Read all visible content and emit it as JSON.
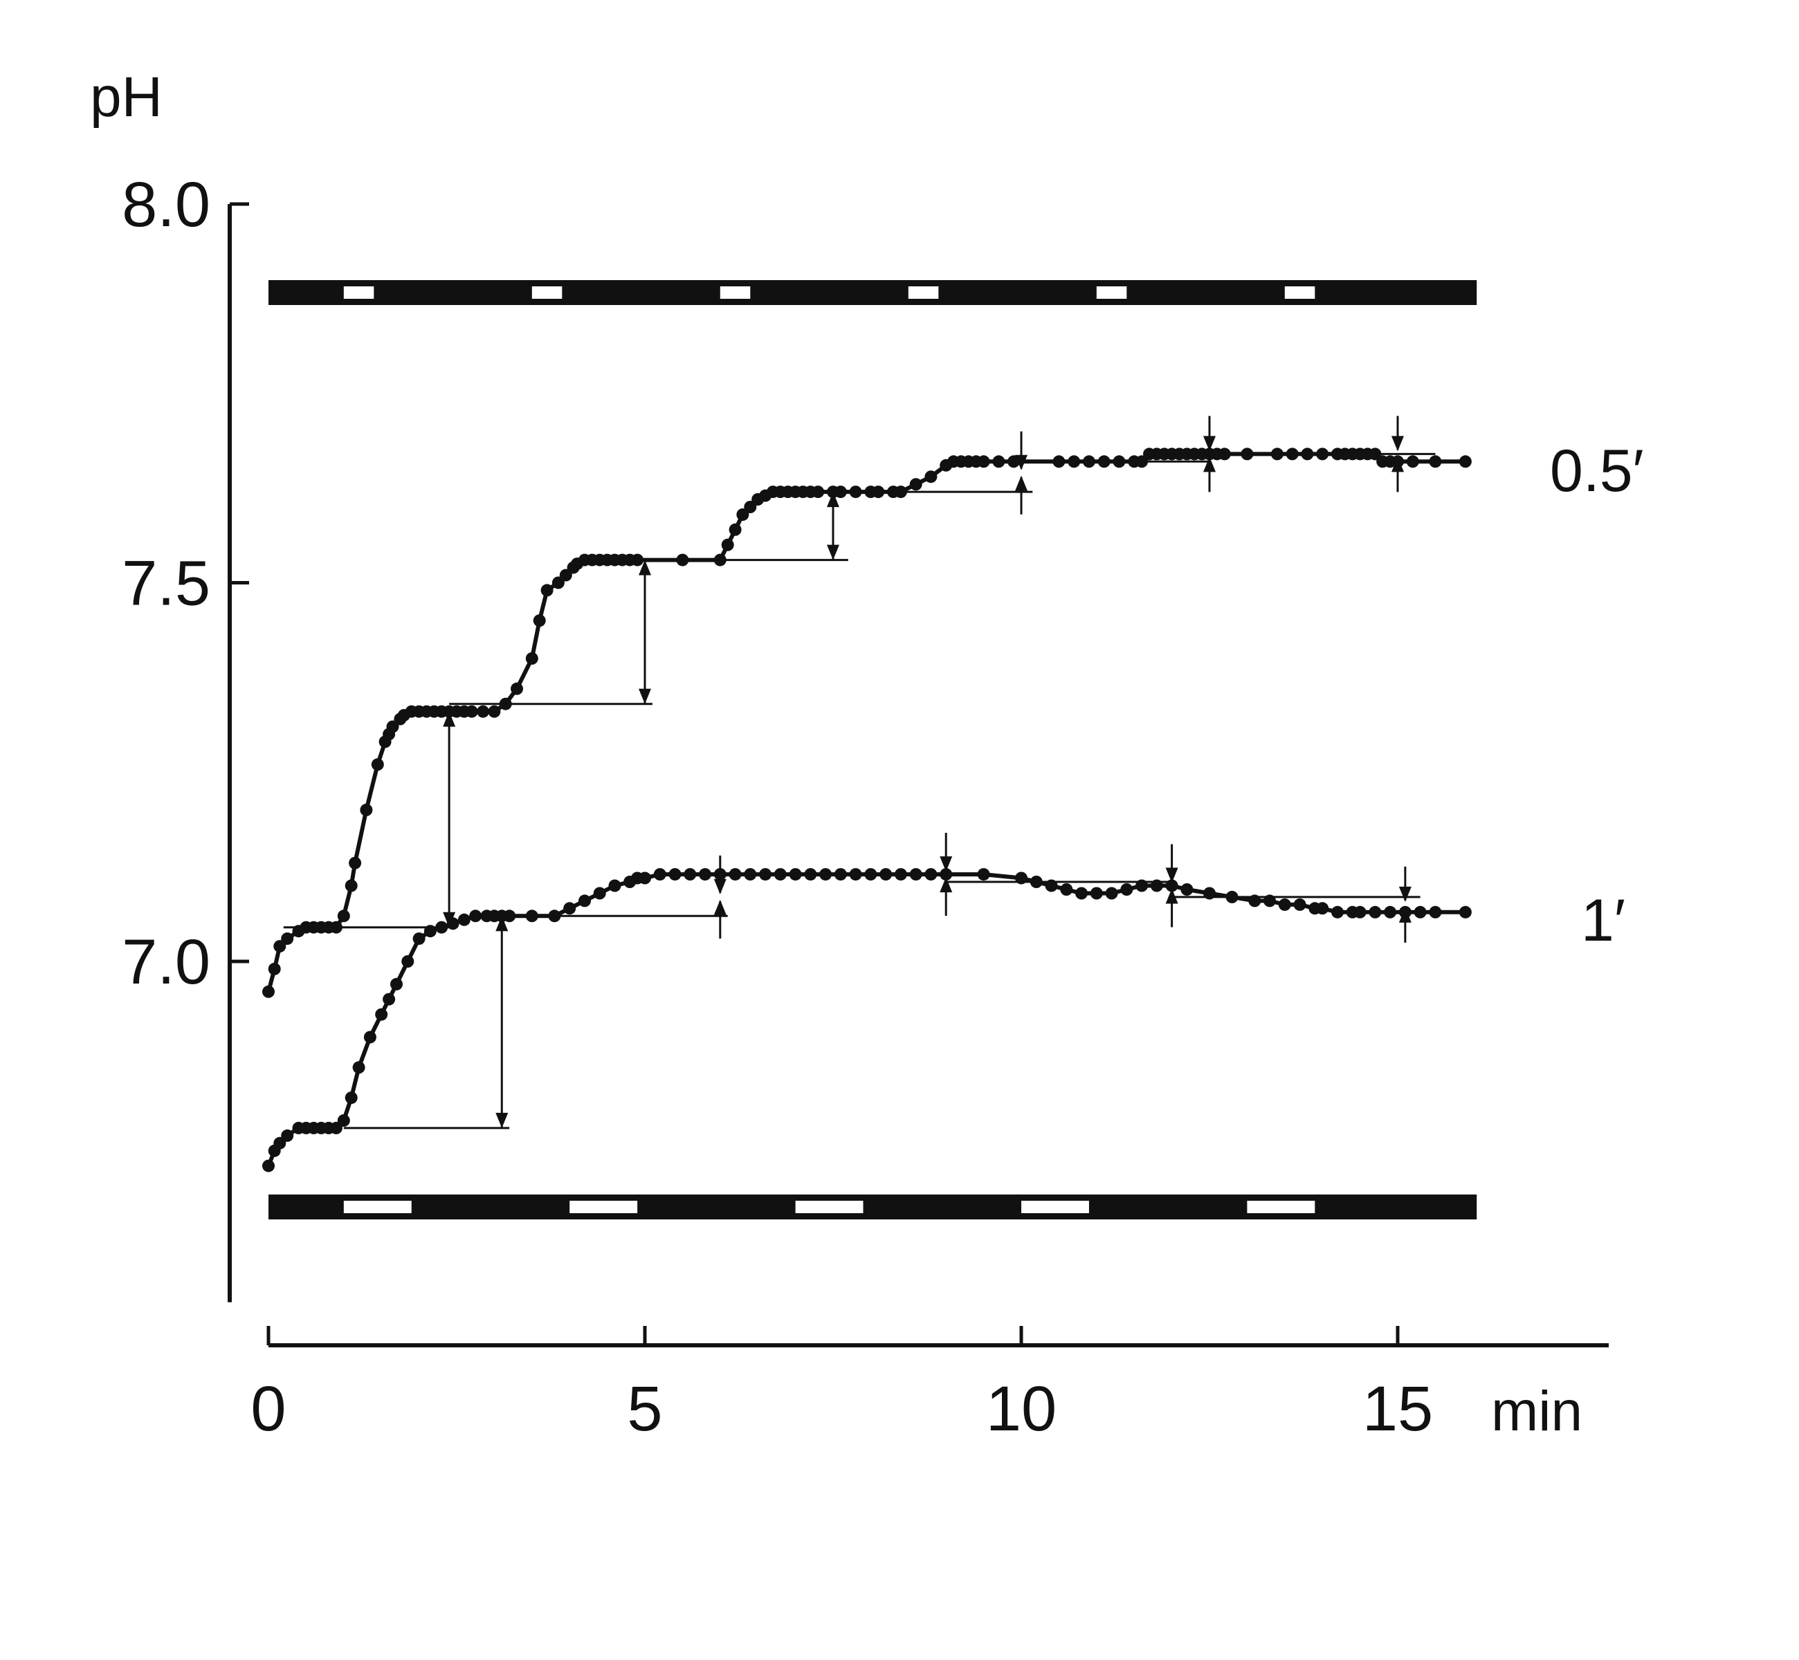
{
  "chart_data": {
    "type": "line",
    "title": "",
    "xlabel": "min",
    "ylabel": "pH",
    "xlim": [
      0,
      17.5
    ],
    "ylim": [
      6.55,
      8.0
    ],
    "x_ticks": [
      0,
      5,
      10,
      15
    ],
    "x_tick_labels": [
      "0",
      "5",
      "10",
      "15"
    ],
    "y_ticks": [
      7.0,
      7.5,
      8.0
    ],
    "y_tick_labels": [
      "7.0",
      "7.5",
      "8.0"
    ],
    "grid": false,
    "colors": {
      "line": "#111111",
      "background": "#ffffff",
      "bar_on": "#111111",
      "bar_off": "#ffffff"
    },
    "series": [
      {
        "name": "0.5′",
        "label_y": 7.66,
        "x": [
          0,
          0.08,
          0.15,
          0.25,
          0.4,
          0.5,
          0.6,
          0.7,
          0.8,
          0.9,
          1.0,
          1.1,
          1.15,
          1.3,
          1.45,
          1.55,
          1.6,
          1.65,
          1.75,
          1.8,
          1.9,
          2.0,
          2.1,
          2.2,
          2.3,
          2.4,
          2.5,
          2.6,
          2.7,
          2.85,
          3.0,
          3.15,
          3.3,
          3.5,
          3.6,
          3.7,
          3.85,
          3.95,
          4.05,
          4.1,
          4.2,
          4.3,
          4.4,
          4.5,
          4.6,
          4.7,
          4.8,
          4.9,
          5.5,
          6.0,
          6.1,
          6.2,
          6.3,
          6.4,
          6.5,
          6.6,
          6.7,
          6.8,
          6.9,
          7.0,
          7.1,
          7.2,
          7.3,
          7.5,
          7.6,
          7.8,
          8.0,
          8.1,
          8.3,
          8.4,
          8.6,
          8.8,
          9.0,
          9.1,
          9.2,
          9.3,
          9.4,
          9.5,
          9.7,
          9.9,
          10.5,
          10.7,
          10.9,
          11.1,
          11.3,
          11.5,
          11.6,
          11.7,
          11.8,
          11.9,
          12.0,
          12.1,
          12.2,
          12.3,
          12.4,
          12.5,
          12.6,
          12.7,
          13.0,
          13.4,
          13.6,
          13.8,
          14.0,
          14.2,
          14.3,
          14.4,
          14.5,
          14.6,
          14.7,
          14.8,
          14.9,
          15.0,
          15.2,
          15.5,
          15.9
        ],
        "y": [
          6.96,
          6.99,
          7.02,
          7.03,
          7.04,
          7.045,
          7.045,
          7.045,
          7.045,
          7.045,
          7.06,
          7.1,
          7.13,
          7.2,
          7.26,
          7.29,
          7.3,
          7.31,
          7.32,
          7.325,
          7.33,
          7.33,
          7.33,
          7.33,
          7.33,
          7.33,
          7.33,
          7.33,
          7.33,
          7.33,
          7.33,
          7.34,
          7.36,
          7.4,
          7.45,
          7.49,
          7.5,
          7.51,
          7.52,
          7.525,
          7.53,
          7.53,
          7.53,
          7.53,
          7.53,
          7.53,
          7.53,
          7.53,
          7.53,
          7.53,
          7.55,
          7.57,
          7.59,
          7.6,
          7.61,
          7.615,
          7.62,
          7.62,
          7.62,
          7.62,
          7.62,
          7.62,
          7.62,
          7.62,
          7.62,
          7.62,
          7.62,
          7.62,
          7.62,
          7.62,
          7.63,
          7.64,
          7.655,
          7.66,
          7.66,
          7.66,
          7.66,
          7.66,
          7.66,
          7.66,
          7.66,
          7.66,
          7.66,
          7.66,
          7.66,
          7.66,
          7.66,
          7.67,
          7.67,
          7.67,
          7.67,
          7.67,
          7.67,
          7.67,
          7.67,
          7.67,
          7.67,
          7.67,
          7.67,
          7.67,
          7.67,
          7.67,
          7.67,
          7.67,
          7.67,
          7.67,
          7.67,
          7.67,
          7.67,
          7.66,
          7.66,
          7.66,
          7.66,
          7.66,
          7.66
        ]
      },
      {
        "name": "1′",
        "label_y": 7.06,
        "x": [
          0,
          0.08,
          0.15,
          0.25,
          0.4,
          0.5,
          0.6,
          0.7,
          0.8,
          0.9,
          1.0,
          1.1,
          1.2,
          1.35,
          1.5,
          1.6,
          1.7,
          1.85,
          2.0,
          2.15,
          2.3,
          2.45,
          2.6,
          2.75,
          2.9,
          3.0,
          3.1,
          3.2,
          3.5,
          3.8,
          4.0,
          4.2,
          4.4,
          4.6,
          4.8,
          4.9,
          5.0,
          5.2,
          5.4,
          5.6,
          5.8,
          6.0,
          6.2,
          6.4,
          6.6,
          6.8,
          7.0,
          7.2,
          7.4,
          7.6,
          7.8,
          8.0,
          8.2,
          8.4,
          8.6,
          8.8,
          9.0,
          9.5,
          10.0,
          10.2,
          10.4,
          10.6,
          10.8,
          11.0,
          11.2,
          11.4,
          11.6,
          11.8,
          12.0,
          12.2,
          12.5,
          12.8,
          13.1,
          13.3,
          13.5,
          13.7,
          13.9,
          14.0,
          14.2,
          14.4,
          14.5,
          14.7,
          14.9,
          15.1,
          15.3,
          15.5,
          15.9
        ],
        "y": [
          6.73,
          6.75,
          6.76,
          6.77,
          6.78,
          6.78,
          6.78,
          6.78,
          6.78,
          6.78,
          6.79,
          6.82,
          6.86,
          6.9,
          6.93,
          6.95,
          6.97,
          7.0,
          7.03,
          7.04,
          7.045,
          7.05,
          7.055,
          7.06,
          7.06,
          7.06,
          7.06,
          7.06,
          7.06,
          7.06,
          7.07,
          7.08,
          7.09,
          7.1,
          7.105,
          7.11,
          7.11,
          7.115,
          7.115,
          7.115,
          7.115,
          7.115,
          7.115,
          7.115,
          7.115,
          7.115,
          7.115,
          7.115,
          7.115,
          7.115,
          7.115,
          7.115,
          7.115,
          7.115,
          7.115,
          7.115,
          7.115,
          7.115,
          7.11,
          7.105,
          7.1,
          7.095,
          7.09,
          7.09,
          7.09,
          7.095,
          7.1,
          7.1,
          7.1,
          7.095,
          7.09,
          7.085,
          7.08,
          7.08,
          7.075,
          7.075,
          7.07,
          7.07,
          7.065,
          7.065,
          7.065,
          7.065,
          7.065,
          7.065,
          7.065,
          7.065,
          7.065
        ]
      }
    ]
  }
}
